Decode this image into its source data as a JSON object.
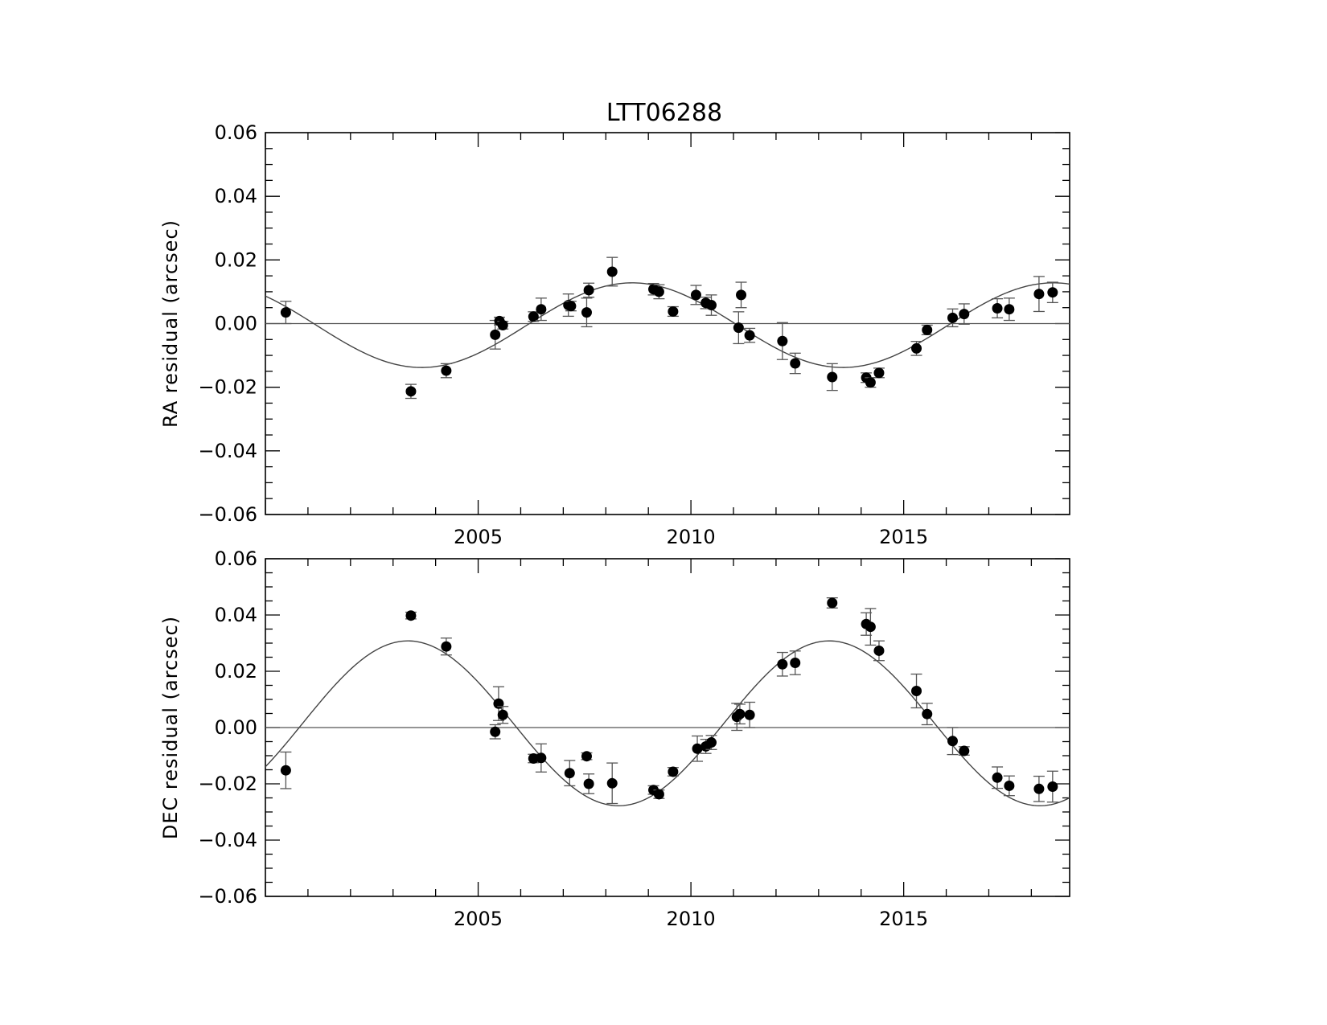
{
  "figure": {
    "title": "LTT06288"
  },
  "chart_data": [
    {
      "type": "scatter",
      "title": "LTT06288",
      "xlabel": "",
      "ylabel": "RA residual (arcsec)",
      "xlim": [
        2000.0,
        2018.9
      ],
      "ylim": [
        -0.06,
        0.06
      ],
      "xticks": [
        2005,
        2010,
        2015
      ],
      "xtick_labels": [
        "2005",
        "2010",
        "2015"
      ],
      "yticks": [
        -0.06,
        -0.04,
        -0.02,
        0.0,
        0.02,
        0.04,
        0.06
      ],
      "ytick_labels": [
        "−0.06",
        "−0.04",
        "−0.02",
        "0.00",
        "0.02",
        "0.04",
        "0.06"
      ],
      "grid": false,
      "zero_line": 0.0,
      "fit": {
        "type": "sinusoid",
        "amplitude": 0.0133,
        "period": 9.9,
        "phase_peak": 2008.62,
        "offset": -0.0005
      },
      "points": [
        {
          "x": 2000.48,
          "y": 0.0035,
          "err": 0.0035
        },
        {
          "x": 2003.42,
          "y": -0.0213,
          "err": 0.0022
        },
        {
          "x": 2004.25,
          "y": -0.0148,
          "err": 0.0022
        },
        {
          "x": 2005.4,
          "y": -0.0035,
          "err": 0.0045
        },
        {
          "x": 2005.5,
          "y": 0.0008,
          "err": 0.0012
        },
        {
          "x": 2005.58,
          "y": -0.0005,
          "err": 0.0012
        },
        {
          "x": 2006.3,
          "y": 0.0022,
          "err": 0.0015
        },
        {
          "x": 2006.48,
          "y": 0.0045,
          "err": 0.0035
        },
        {
          "x": 2007.12,
          "y": 0.0058,
          "err": 0.0035
        },
        {
          "x": 2007.18,
          "y": 0.0055,
          "err": 0.0015
        },
        {
          "x": 2007.55,
          "y": 0.0035,
          "err": 0.0045
        },
        {
          "x": 2007.6,
          "y": 0.0105,
          "err": 0.0022
        },
        {
          "x": 2008.15,
          "y": 0.0163,
          "err": 0.0045
        },
        {
          "x": 2009.12,
          "y": 0.0108,
          "err": 0.0018
        },
        {
          "x": 2009.25,
          "y": 0.01,
          "err": 0.0022
        },
        {
          "x": 2009.58,
          "y": 0.0038,
          "err": 0.0015
        },
        {
          "x": 2010.12,
          "y": 0.009,
          "err": 0.003
        },
        {
          "x": 2010.35,
          "y": 0.0065,
          "err": 0.0018
        },
        {
          "x": 2010.48,
          "y": 0.0058,
          "err": 0.0032
        },
        {
          "x": 2011.12,
          "y": -0.0013,
          "err": 0.005
        },
        {
          "x": 2011.18,
          "y": 0.009,
          "err": 0.004
        },
        {
          "x": 2011.38,
          "y": -0.0037,
          "err": 0.0022
        },
        {
          "x": 2012.15,
          "y": -0.0055,
          "err": 0.0058
        },
        {
          "x": 2012.45,
          "y": -0.0125,
          "err": 0.0032
        },
        {
          "x": 2013.32,
          "y": -0.0168,
          "err": 0.0042
        },
        {
          "x": 2014.12,
          "y": -0.017,
          "err": 0.0015
        },
        {
          "x": 2014.22,
          "y": -0.0185,
          "err": 0.0015
        },
        {
          "x": 2014.42,
          "y": -0.0155,
          "err": 0.0015
        },
        {
          "x": 2015.3,
          "y": -0.0078,
          "err": 0.0022
        },
        {
          "x": 2015.55,
          "y": -0.002,
          "err": 0.0015
        },
        {
          "x": 2016.15,
          "y": 0.0018,
          "err": 0.0028
        },
        {
          "x": 2016.42,
          "y": 0.003,
          "err": 0.0032
        },
        {
          "x": 2017.2,
          "y": 0.0048,
          "err": 0.003
        },
        {
          "x": 2017.48,
          "y": 0.0045,
          "err": 0.0035
        },
        {
          "x": 2018.18,
          "y": 0.0093,
          "err": 0.0055
        },
        {
          "x": 2018.5,
          "y": 0.0098,
          "err": 0.0032
        }
      ]
    },
    {
      "type": "scatter",
      "title": "",
      "xlabel": "",
      "ylabel": "DEC residual (arcsec)",
      "xlim": [
        2000.0,
        2018.9
      ],
      "ylim": [
        -0.06,
        0.06
      ],
      "xticks": [
        2005,
        2010,
        2015
      ],
      "xtick_labels": [
        "2005",
        "2010",
        "2015"
      ],
      "yticks": [
        -0.06,
        -0.04,
        -0.02,
        0.0,
        0.02,
        0.04,
        0.06
      ],
      "ytick_labels": [
        "−0.06",
        "−0.04",
        "−0.02",
        "0.00",
        "0.02",
        "0.04",
        "0.06"
      ],
      "grid": false,
      "zero_line": 0.0,
      "fit": {
        "type": "sinusoid",
        "amplitude": 0.0293,
        "period": 9.9,
        "phase_peak": 2003.35,
        "offset": 0.0015
      },
      "points": [
        {
          "x": 2000.48,
          "y": -0.0152,
          "err": 0.0065
        },
        {
          "x": 2003.42,
          "y": 0.0398,
          "err": 0.0012
        },
        {
          "x": 2004.25,
          "y": 0.0288,
          "err": 0.003
        },
        {
          "x": 2005.4,
          "y": -0.0015,
          "err": 0.0025
        },
        {
          "x": 2005.48,
          "y": 0.0085,
          "err": 0.006
        },
        {
          "x": 2005.58,
          "y": 0.0045,
          "err": 0.003
        },
        {
          "x": 2006.3,
          "y": -0.011,
          "err": 0.0015
        },
        {
          "x": 2006.48,
          "y": -0.0108,
          "err": 0.005
        },
        {
          "x": 2007.15,
          "y": -0.0162,
          "err": 0.0045
        },
        {
          "x": 2007.55,
          "y": -0.0102,
          "err": 0.0012
        },
        {
          "x": 2007.6,
          "y": -0.02,
          "err": 0.0035
        },
        {
          "x": 2008.15,
          "y": -0.0198,
          "err": 0.0072
        },
        {
          "x": 2009.12,
          "y": -0.0222,
          "err": 0.0015
        },
        {
          "x": 2009.25,
          "y": -0.0237,
          "err": 0.0015
        },
        {
          "x": 2009.58,
          "y": -0.0157,
          "err": 0.0015
        },
        {
          "x": 2010.15,
          "y": -0.0075,
          "err": 0.0045
        },
        {
          "x": 2010.35,
          "y": -0.0067,
          "err": 0.0025
        },
        {
          "x": 2010.48,
          "y": -0.0053,
          "err": 0.0025
        },
        {
          "x": 2011.08,
          "y": 0.0038,
          "err": 0.0048
        },
        {
          "x": 2011.15,
          "y": 0.0048,
          "err": 0.0035
        },
        {
          "x": 2011.38,
          "y": 0.0045,
          "err": 0.0045
        },
        {
          "x": 2012.15,
          "y": 0.0225,
          "err": 0.0042
        },
        {
          "x": 2012.45,
          "y": 0.023,
          "err": 0.0042
        },
        {
          "x": 2013.32,
          "y": 0.0443,
          "err": 0.0018
        },
        {
          "x": 2014.12,
          "y": 0.0368,
          "err": 0.004
        },
        {
          "x": 2014.22,
          "y": 0.0358,
          "err": 0.0065
        },
        {
          "x": 2014.42,
          "y": 0.0273,
          "err": 0.0035
        },
        {
          "x": 2015.3,
          "y": 0.013,
          "err": 0.006
        },
        {
          "x": 2015.55,
          "y": 0.0048,
          "err": 0.0038
        },
        {
          "x": 2016.15,
          "y": -0.0048,
          "err": 0.0048
        },
        {
          "x": 2016.42,
          "y": -0.0083,
          "err": 0.0015
        },
        {
          "x": 2017.2,
          "y": -0.0178,
          "err": 0.0038
        },
        {
          "x": 2017.48,
          "y": -0.0207,
          "err": 0.0035
        },
        {
          "x": 2018.18,
          "y": -0.0218,
          "err": 0.0045
        },
        {
          "x": 2018.5,
          "y": -0.021,
          "err": 0.0055
        }
      ]
    }
  ]
}
